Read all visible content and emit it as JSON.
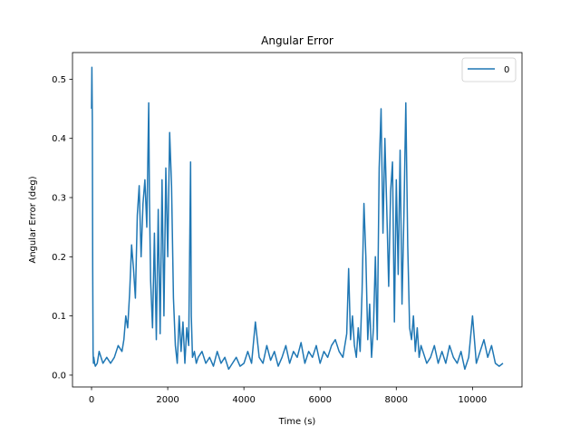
{
  "chart_data": {
    "type": "line",
    "title": "Angular Error",
    "xlabel": "Time (s)",
    "ylabel": "Angular Error (deg)",
    "xlim": [
      -500,
      11300
    ],
    "ylim": [
      -0.02,
      0.545
    ],
    "xticks": [
      0,
      2000,
      4000,
      6000,
      8000,
      10000
    ],
    "yticks": [
      0.0,
      0.1,
      0.2,
      0.3,
      0.4,
      0.5
    ],
    "xtick_labels": [
      "0",
      "2000",
      "4000",
      "6000",
      "8000",
      "10000"
    ],
    "ytick_labels": [
      "0.0",
      "0.1",
      "0.2",
      "0.3",
      "0.4",
      "0.5"
    ],
    "grid": false,
    "legend": {
      "position": "top-right",
      "entries": [
        "0"
      ]
    },
    "colors": {
      "series": "#1f77b4"
    },
    "series": [
      {
        "name": "0",
        "x": [
          0,
          10,
          20,
          30,
          40,
          50,
          60,
          80,
          100,
          150,
          200,
          300,
          400,
          500,
          600,
          700,
          800,
          850,
          900,
          950,
          1000,
          1050,
          1100,
          1150,
          1200,
          1250,
          1300,
          1350,
          1400,
          1450,
          1500,
          1520,
          1550,
          1600,
          1650,
          1700,
          1750,
          1800,
          1850,
          1900,
          1950,
          2000,
          2050,
          2100,
          2150,
          2200,
          2250,
          2300,
          2350,
          2400,
          2450,
          2500,
          2550,
          2600,
          2620,
          2650,
          2700,
          2750,
          2800,
          2900,
          3000,
          3100,
          3200,
          3300,
          3400,
          3500,
          3600,
          3700,
          3800,
          3900,
          4000,
          4100,
          4200,
          4300,
          4400,
          4500,
          4600,
          4700,
          4800,
          4900,
          5000,
          5100,
          5200,
          5300,
          5400,
          5500,
          5600,
          5700,
          5800,
          5900,
          6000,
          6100,
          6200,
          6300,
          6400,
          6500,
          6600,
          6700,
          6750,
          6800,
          6850,
          6900,
          6950,
          7000,
          7050,
          7100,
          7150,
          7200,
          7250,
          7300,
          7350,
          7400,
          7450,
          7500,
          7550,
          7600,
          7650,
          7700,
          7750,
          7800,
          7850,
          7900,
          7950,
          8000,
          8050,
          8100,
          8150,
          8200,
          8250,
          8300,
          8350,
          8400,
          8450,
          8500,
          8550,
          8600,
          8650,
          8700,
          8800,
          8900,
          9000,
          9100,
          9200,
          9300,
          9400,
          9500,
          9600,
          9700,
          9800,
          9900,
          10000,
          10100,
          10200,
          10300,
          10400,
          10500,
          10600,
          10700,
          10800
        ],
        "y": [
          0.45,
          0.52,
          0.43,
          0.18,
          0.04,
          0.02,
          0.03,
          0.02,
          0.015,
          0.02,
          0.04,
          0.02,
          0.03,
          0.02,
          0.03,
          0.05,
          0.04,
          0.06,
          0.1,
          0.08,
          0.14,
          0.22,
          0.18,
          0.13,
          0.27,
          0.32,
          0.2,
          0.29,
          0.33,
          0.25,
          0.46,
          0.3,
          0.16,
          0.08,
          0.24,
          0.06,
          0.28,
          0.07,
          0.33,
          0.1,
          0.35,
          0.2,
          0.41,
          0.32,
          0.13,
          0.05,
          0.02,
          0.1,
          0.04,
          0.09,
          0.02,
          0.08,
          0.05,
          0.36,
          0.1,
          0.03,
          0.04,
          0.02,
          0.03,
          0.04,
          0.02,
          0.03,
          0.015,
          0.04,
          0.02,
          0.03,
          0.01,
          0.02,
          0.03,
          0.015,
          0.02,
          0.04,
          0.02,
          0.09,
          0.03,
          0.02,
          0.05,
          0.025,
          0.04,
          0.015,
          0.03,
          0.05,
          0.02,
          0.04,
          0.03,
          0.055,
          0.02,
          0.04,
          0.03,
          0.05,
          0.02,
          0.04,
          0.03,
          0.05,
          0.06,
          0.04,
          0.03,
          0.07,
          0.18,
          0.06,
          0.1,
          0.05,
          0.03,
          0.08,
          0.04,
          0.14,
          0.29,
          0.2,
          0.06,
          0.12,
          0.03,
          0.08,
          0.2,
          0.06,
          0.35,
          0.45,
          0.24,
          0.4,
          0.28,
          0.15,
          0.31,
          0.36,
          0.09,
          0.33,
          0.17,
          0.38,
          0.12,
          0.27,
          0.46,
          0.22,
          0.08,
          0.06,
          0.1,
          0.04,
          0.08,
          0.03,
          0.05,
          0.04,
          0.02,
          0.03,
          0.05,
          0.02,
          0.04,
          0.02,
          0.05,
          0.03,
          0.02,
          0.04,
          0.01,
          0.03,
          0.1,
          0.02,
          0.04,
          0.06,
          0.03,
          0.05,
          0.02,
          0.015,
          0.02
        ]
      }
    ]
  }
}
